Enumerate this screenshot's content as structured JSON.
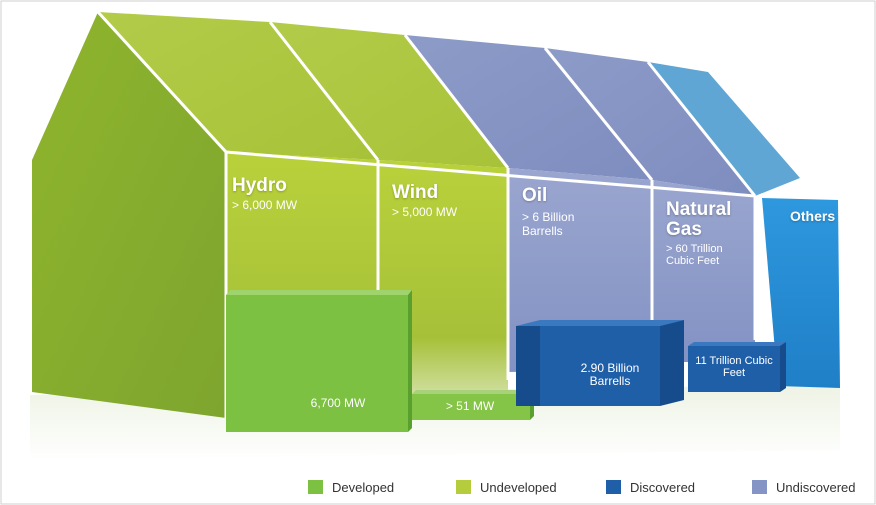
{
  "colors": {
    "developed": "#7cc142",
    "undeveloped": "#b5cc3d",
    "discovered": "#1f5fa8",
    "undiscovered": "#8494c4",
    "others": "#2a8fd6"
  },
  "sections": [
    {
      "name": "Hydro",
      "potential": "> 6,000 MW",
      "current": "6,700 MW"
    },
    {
      "name": "Wind",
      "potential": "> 5,000 MW",
      "current": "> 51 MW"
    },
    {
      "name": "Oil",
      "potential": "> 6 Billion Barrells",
      "current": "2.90 Billion Barrells"
    },
    {
      "name": "Natural Gas",
      "potential": "> 60 Trillion Cubic Feet",
      "current": "11 Trillion Cubic Feet"
    },
    {
      "name": "Others",
      "potential": "",
      "current": ""
    }
  ],
  "legend": [
    {
      "label": "Developed",
      "color": "#7cc142"
    },
    {
      "label": "Undeveloped",
      "color": "#b5cc3d"
    },
    {
      "label": "Discovered",
      "color": "#1f5fa8"
    },
    {
      "label": "Undiscovered",
      "color": "#8494c4"
    }
  ]
}
